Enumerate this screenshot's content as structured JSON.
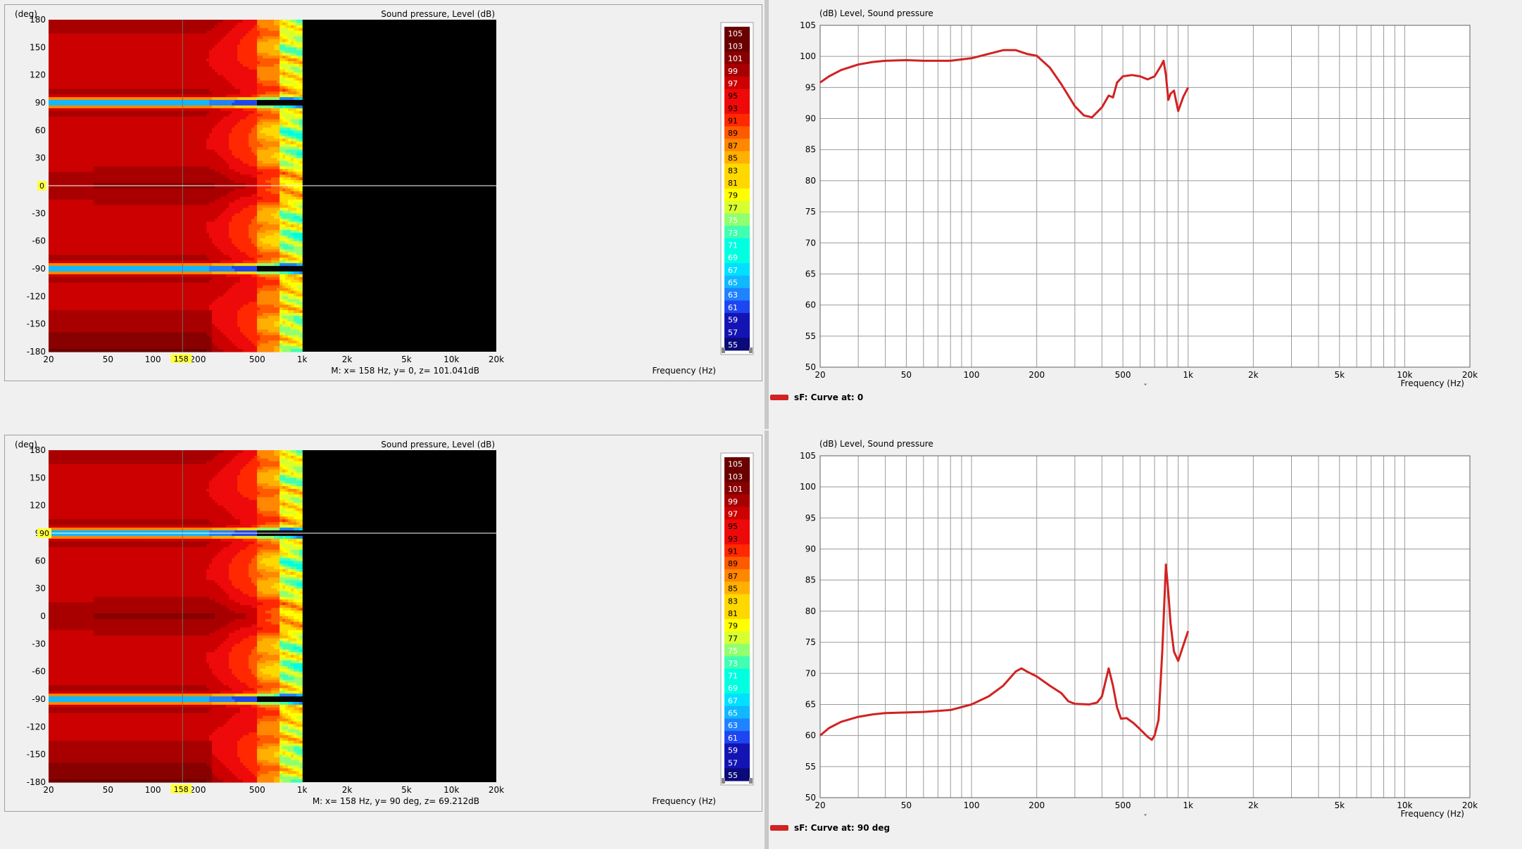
{
  "colors": {
    "curve": "#d22222",
    "background": "#f0f0f0",
    "black_region": "#000000",
    "colorbar": [
      "#050505",
      "#0a0a7a",
      "#1414b4",
      "#1e46f0",
      "#1f82ff",
      "#10b8ff",
      "#00e0ff",
      "#00ffe0",
      "#40ffb0",
      "#90ff70",
      "#d8ff30",
      "#ffff00",
      "#ffd800",
      "#ffb000",
      "#ff8800",
      "#ff5a00",
      "#ff2800",
      "#ee0a0a",
      "#cc0000",
      "#a80000",
      "#880000",
      "#6a0000"
    ]
  },
  "chart_data": [
    {
      "id": "polar-map-top",
      "type": "heatmap",
      "title": "Sound pressure, Level  (dB)",
      "ylabel": "(deg)",
      "xlabel": "Frequency  (Hz)",
      "x_scale": "log",
      "xlim": [
        20,
        20000
      ],
      "ylim": [
        -180,
        180
      ],
      "x_ticks": [
        "20",
        "50",
        "100",
        "200",
        "500",
        "1k",
        "2k",
        "5k",
        "10k",
        "20k"
      ],
      "y_ticks": [
        "180",
        "150",
        "120",
        "90",
        "60",
        "30",
        "0",
        "-30",
        "-60",
        "-90",
        "-120",
        "-150",
        "-180"
      ],
      "colorbar_ticks": [
        "105",
        "103",
        "101",
        "99",
        "97",
        "95",
        "93",
        "91",
        "89",
        "87",
        "85",
        "83",
        "81",
        "79",
        "77",
        "75",
        "73",
        "71",
        "69",
        "67",
        "65",
        "63",
        "61",
        "59",
        "57",
        "55"
      ],
      "cursor": {
        "x": 158,
        "y": 0,
        "x_label": "158",
        "y_label": "0"
      },
      "marker_text": "M:  x= 158 Hz,  y= 0, z= 101.041dB",
      "data_max_freq": 1000
    },
    {
      "id": "curve-top",
      "type": "line",
      "title": "(dB)  Level, Sound pressure",
      "xlabel": "Frequency  (Hz)",
      "x_scale": "log",
      "xlim": [
        20,
        20000
      ],
      "ylim": [
        50,
        105
      ],
      "x_ticks": [
        "20",
        "50",
        "100",
        "200",
        "500",
        "1k",
        "2k",
        "5k",
        "10k",
        "20k"
      ],
      "y_ticks": [
        "105",
        "100",
        "95",
        "90",
        "85",
        "80",
        "75",
        "70",
        "65",
        "60",
        "55",
        "50"
      ],
      "series": [
        {
          "name": "sF: Curve at: 0",
          "x": [
            20,
            22,
            25,
            30,
            35,
            40,
            50,
            60,
            80,
            100,
            120,
            140,
            160,
            180,
            200,
            230,
            260,
            300,
            330,
            360,
            400,
            430,
            450,
            470,
            500,
            550,
            600,
            650,
            700,
            750,
            770,
            790,
            810,
            830,
            860,
            900,
            950,
            1000
          ],
          "y": [
            95.8,
            96.8,
            97.8,
            98.7,
            99.1,
            99.3,
            99.4,
            99.3,
            99.3,
            99.7,
            100.4,
            101.0,
            101.0,
            100.4,
            100.1,
            98.2,
            95.5,
            92.0,
            90.5,
            90.2,
            91.8,
            93.7,
            93.4,
            95.8,
            96.8,
            97.0,
            96.8,
            96.3,
            96.8,
            98.5,
            99.3,
            97.0,
            93.0,
            94.0,
            94.5,
            91.2,
            93.5,
            95.0
          ]
        }
      ]
    },
    {
      "id": "polar-map-bottom",
      "type": "heatmap",
      "title": "Sound pressure, Level  (dB)",
      "ylabel": "(deg)",
      "xlabel": "Frequency  (Hz)",
      "x_scale": "log",
      "xlim": [
        20,
        20000
      ],
      "ylim": [
        -180,
        180
      ],
      "x_ticks": [
        "20",
        "50",
        "100",
        "200",
        "500",
        "1k",
        "2k",
        "5k",
        "10k",
        "20k"
      ],
      "y_ticks": [
        "180",
        "150",
        "120",
        "90",
        "60",
        "30",
        "0",
        "-30",
        "-60",
        "-90",
        "-120",
        "-150",
        "-180"
      ],
      "colorbar_ticks": [
        "105",
        "103",
        "101",
        "99",
        "97",
        "95",
        "93",
        "91",
        "89",
        "87",
        "85",
        "83",
        "81",
        "79",
        "77",
        "75",
        "73",
        "71",
        "69",
        "67",
        "65",
        "63",
        "61",
        "59",
        "57",
        "55"
      ],
      "cursor": {
        "x": 158,
        "y": 90,
        "x_label": "158",
        "y_label": "90"
      },
      "marker_text": "M:  x= 158 Hz,  y= 90 deg, z= 69.212dB",
      "data_max_freq": 1000
    },
    {
      "id": "curve-bottom",
      "type": "line",
      "title": "(dB)  Level, Sound pressure",
      "xlabel": "Frequency  (Hz)",
      "x_scale": "log",
      "xlim": [
        20,
        20000
      ],
      "ylim": [
        50,
        105
      ],
      "x_ticks": [
        "20",
        "50",
        "100",
        "200",
        "500",
        "1k",
        "2k",
        "5k",
        "10k",
        "20k"
      ],
      "y_ticks": [
        "105",
        "100",
        "95",
        "90",
        "85",
        "80",
        "75",
        "70",
        "65",
        "60",
        "55",
        "50"
      ],
      "series": [
        {
          "name": "sF: Curve at: 90 deg",
          "x": [
            20,
            22,
            25,
            30,
            35,
            40,
            50,
            60,
            80,
            100,
            120,
            140,
            160,
            170,
            180,
            200,
            230,
            260,
            280,
            300,
            350,
            380,
            400,
            430,
            450,
            470,
            490,
            520,
            560,
            600,
            650,
            680,
            700,
            730,
            760,
            790,
            810,
            830,
            860,
            900,
            950,
            1000
          ],
          "y": [
            60.0,
            61.2,
            62.2,
            63.0,
            63.4,
            63.6,
            63.7,
            63.8,
            64.1,
            65.0,
            66.3,
            68.0,
            70.3,
            70.8,
            70.3,
            69.5,
            68.0,
            66.8,
            65.5,
            65.1,
            65.0,
            65.3,
            66.3,
            70.8,
            68.0,
            64.5,
            62.7,
            62.8,
            62.0,
            61.0,
            59.8,
            59.3,
            60.0,
            62.5,
            73.5,
            87.5,
            83.0,
            78.0,
            73.5,
            72.0,
            74.5,
            76.8
          ]
        }
      ]
    }
  ],
  "legends": [
    "sF: Curve at: 0",
    "sF: Curve at: 90 deg"
  ],
  "chevron": "ˇ"
}
